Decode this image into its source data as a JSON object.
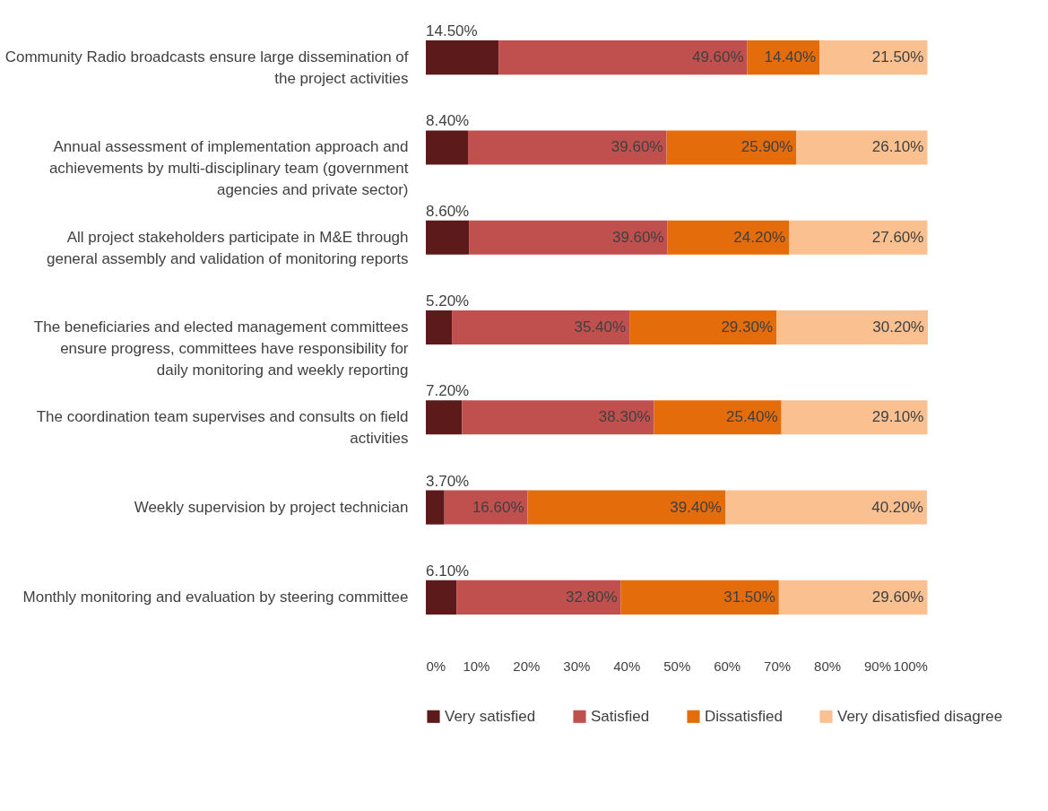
{
  "chart_data": {
    "type": "bar",
    "orientation": "horizontal",
    "stacked": true,
    "categories": [
      "Community Radio broadcasts ensure large dissemination of the project activities",
      "Annual assessment of implementation approach and achievements by multi-disciplinary team (government agencies and private sector)",
      "All project stakeholders participate in M&E through general assembly and validation of monitoring reports",
      "The beneficiaries and elected management committees ensure progress, committees have responsibility for daily monitoring and weekly reporting",
      "The coordination team supervises and consults on field activities",
      "Weekly supervision by project technician",
      "Monthly monitoring and evaluation by steering committee"
    ],
    "series": [
      {
        "name": "Very satisfied",
        "color": "#5c1a1b",
        "values": [
          14.5,
          8.4,
          8.6,
          5.2,
          7.2,
          3.7,
          6.1
        ],
        "value_labels": [
          "14.50%",
          "8.40%",
          "8.60%",
          "5.20%",
          "7.20%",
          "3.70%",
          "6.10%"
        ]
      },
      {
        "name": "Satisfied",
        "color": "#c0504d",
        "values": [
          49.6,
          39.6,
          39.6,
          35.4,
          38.3,
          16.6,
          32.8
        ],
        "value_labels": [
          "49.60%",
          "39.60%",
          "39.60%",
          "35.40%",
          "38.30%",
          "16.60%",
          "32.80%"
        ]
      },
      {
        "name": "Dissatisfied",
        "color": "#e46c0a",
        "values": [
          14.4,
          25.9,
          24.2,
          29.3,
          25.4,
          39.4,
          31.5
        ],
        "value_labels": [
          "14.40%",
          "25.90%",
          "24.20%",
          "29.30%",
          "25.40%",
          "39.40%",
          "31.50%"
        ]
      },
      {
        "name": "Very disatisfied disagree",
        "color": "#fac090",
        "values": [
          21.5,
          26.1,
          27.6,
          30.2,
          29.1,
          40.2,
          29.6
        ],
        "value_labels": [
          "21.50%",
          "26.10%",
          "27.60%",
          "30.20%",
          "29.10%",
          "40.20%",
          "29.60%"
        ]
      }
    ],
    "xlim": [
      0,
      100.1
    ],
    "xticks": [
      {
        "value": 0,
        "label": "0%"
      },
      {
        "value": 10,
        "label": "10%"
      },
      {
        "value": 20,
        "label": "20%"
      },
      {
        "value": 30,
        "label": "30%"
      },
      {
        "value": 40,
        "label": "40%"
      },
      {
        "value": 50,
        "label": "50%"
      },
      {
        "value": 60,
        "label": "60%"
      },
      {
        "value": 70,
        "label": "70%"
      },
      {
        "value": 80,
        "label": "80%"
      },
      {
        "value": 90,
        "label": "90%"
      },
      {
        "value": 100,
        "label": "100%"
      }
    ],
    "grid": false,
    "legend": "bottom"
  }
}
